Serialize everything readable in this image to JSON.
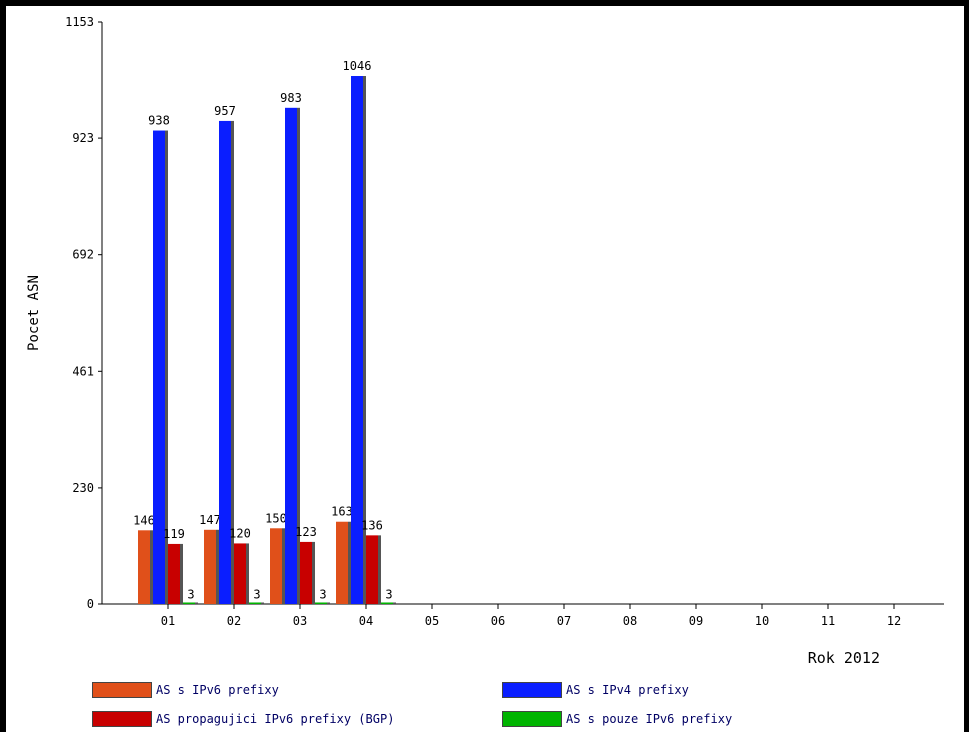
{
  "chart_data": {
    "type": "bar",
    "categories": [
      "01",
      "02",
      "03",
      "04",
      "05",
      "06",
      "07",
      "08",
      "09",
      "10",
      "11",
      "12"
    ],
    "xlabel": "Rok 2012",
    "ylabel": "Pocet ASN",
    "ylim": [
      0,
      1153
    ],
    "yticks": [
      0,
      230,
      461,
      692,
      923,
      1153
    ],
    "grid": false,
    "legend_position": "bottom",
    "series": [
      {
        "name": "AS s IPv6 prefixy",
        "color": "#e0501a",
        "values": [
          146,
          147,
          150,
          163,
          null,
          null,
          null,
          null,
          null,
          null,
          null,
          null
        ]
      },
      {
        "name": "AS s IPv4 prefixy",
        "color": "#0a1eff",
        "values": [
          938,
          957,
          983,
          1046,
          null,
          null,
          null,
          null,
          null,
          null,
          null,
          null
        ]
      },
      {
        "name": "AS propagujici IPv6 prefixy (BGP)",
        "color": "#c80000",
        "values": [
          119,
          120,
          123,
          136,
          null,
          null,
          null,
          null,
          null,
          null,
          null,
          null
        ]
      },
      {
        "name": "AS s pouze IPv6 prefixy",
        "color": "#00b400",
        "values": [
          3,
          3,
          3,
          3,
          null,
          null,
          null,
          null,
          null,
          null,
          null,
          null
        ]
      }
    ]
  }
}
